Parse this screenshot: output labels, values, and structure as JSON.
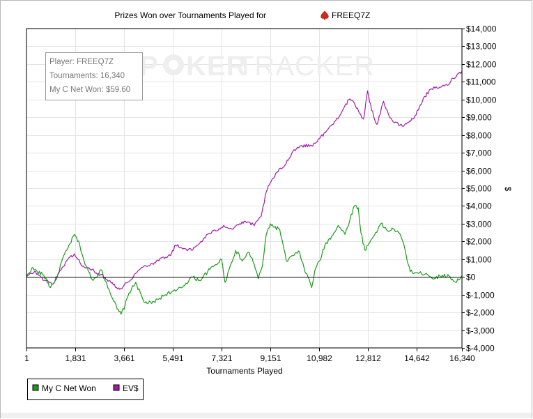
{
  "window": {
    "title_prefix": "Prizes Won over Tournaments Played for",
    "player_name": "FREEQ7Z",
    "title_icon": "spade-icon"
  },
  "watermark": {
    "part1": "P",
    "part2": "KER",
    "part3": "TRACKER"
  },
  "info_box": {
    "line1": "Player: FREEQ7Z",
    "line2": "Tournaments: 16,340",
    "line3": "My C Net Won: $59.60"
  },
  "colors": {
    "net_won": "#1a9c1a",
    "ev": "#a01aa8",
    "grid": "#e4e4e4",
    "zero_line": "#000000"
  },
  "chart_data": {
    "type": "line",
    "title": "Prizes Won over Tournaments Played for FREEQ7Z",
    "xlabel": "Tournaments Played",
    "ylabel": "$",
    "xlim": [
      1,
      16340
    ],
    "ylim": [
      -4000,
      14000
    ],
    "grid": true,
    "legend_placement": "bottom-left",
    "x_ticks": [
      "1",
      "1,831",
      "3,661",
      "5,491",
      "7,321",
      "9,151",
      "10,982",
      "12,812",
      "14,642",
      "16,340"
    ],
    "x_tick_values": [
      1,
      1831,
      3661,
      5491,
      7321,
      9151,
      10982,
      12812,
      14642,
      16340
    ],
    "y_ticks": [
      "$-4,000",
      "$-3,000",
      "$-2,000",
      "$-1,000",
      "$0",
      "$1,000",
      "$2,000",
      "$3,000",
      "$4,000",
      "$5,000",
      "$6,000",
      "$7,000",
      "$8,000",
      "$9,000",
      "$10,000",
      "$11,000",
      "$12,000",
      "$13,000",
      "$14,000"
    ],
    "y_tick_values": [
      -4000,
      -3000,
      -2000,
      -1000,
      0,
      1000,
      2000,
      3000,
      4000,
      5000,
      6000,
      7000,
      8000,
      9000,
      10000,
      11000,
      12000,
      13000,
      14000
    ],
    "series": [
      {
        "name": "My C Net Won",
        "color": "#1a9c1a",
        "x": [
          1,
          200,
          400,
          650,
          900,
          1150,
          1350,
          1550,
          1800,
          2000,
          2200,
          2500,
          2800,
          3100,
          3400,
          3550,
          3700,
          3850,
          4100,
          4400,
          4700,
          5000,
          5300,
          5600,
          5900,
          6200,
          6500,
          6800,
          7100,
          7321,
          7450,
          7600,
          7850,
          8100,
          8350,
          8550,
          8700,
          8850,
          9000,
          9151,
          9300,
          9500,
          9750,
          10000,
          10250,
          10450,
          10600,
          10700,
          10850,
          11000,
          11200,
          11450,
          11700,
          11950,
          12150,
          12300,
          12450,
          12550,
          12700,
          12900,
          13100,
          13300,
          13550,
          13800,
          14050,
          14150,
          14250,
          14400,
          14700,
          15000,
          15300,
          15600,
          15900,
          16100,
          16340
        ],
        "values": [
          0,
          500,
          300,
          100,
          -600,
          0,
          1000,
          1600,
          2400,
          1800,
          700,
          -200,
          400,
          -700,
          -1800,
          -2100,
          -1600,
          -900,
          -300,
          -1400,
          -1500,
          -1200,
          -900,
          -800,
          -500,
          0,
          -200,
          300,
          700,
          1000,
          -300,
          400,
          1500,
          900,
          1400,
          700,
          -100,
          600,
          2400,
          3000,
          2800,
          2700,
          900,
          1200,
          1400,
          300,
          -100,
          -600,
          500,
          900,
          1800,
          2300,
          2900,
          2400,
          3300,
          4000,
          3900,
          2500,
          1500,
          2000,
          2500,
          3000,
          2600,
          2700,
          2300,
          1900,
          1200,
          300,
          200,
          200,
          -100,
          100,
          0,
          -300,
          60
        ]
      },
      {
        "name": "EV$",
        "color": "#a01aa8",
        "x": [
          1,
          300,
          700,
          1000,
          1300,
          1550,
          1800,
          2100,
          2300,
          2700,
          3100,
          3500,
          3800,
          4100,
          4400,
          4800,
          5100,
          5400,
          5600,
          5900,
          6200,
          6500,
          6800,
          7100,
          7400,
          7700,
          8000,
          8300,
          8550,
          8800,
          9000,
          9151,
          9400,
          9700,
          10000,
          10300,
          10700,
          11000,
          11300,
          11600,
          11900,
          12100,
          12300,
          12500,
          12650,
          12800,
          12950,
          13150,
          13400,
          13600,
          13800,
          14100,
          14300,
          14500,
          14700,
          14900,
          15200,
          15500,
          15800,
          16000,
          16340
        ],
        "values": [
          0,
          300,
          -200,
          -400,
          400,
          1000,
          1300,
          600,
          500,
          200,
          -200,
          -700,
          -300,
          200,
          600,
          800,
          1100,
          1200,
          1800,
          1600,
          1500,
          1900,
          2400,
          2600,
          2900,
          2700,
          3000,
          3100,
          2900,
          3400,
          4800,
          5300,
          5900,
          6300,
          7100,
          7400,
          7400,
          7800,
          8300,
          8800,
          9500,
          10000,
          9800,
          9200,
          8900,
          10500,
          9400,
          8600,
          9900,
          9100,
          8700,
          8500,
          8700,
          8900,
          9400,
          10100,
          10600,
          10700,
          10800,
          11200,
          11600
        ]
      }
    ]
  },
  "legend": [
    {
      "label": "My C Net Won",
      "color": "#1a9c1a"
    },
    {
      "label": "EV$",
      "color": "#a01aa8"
    }
  ]
}
